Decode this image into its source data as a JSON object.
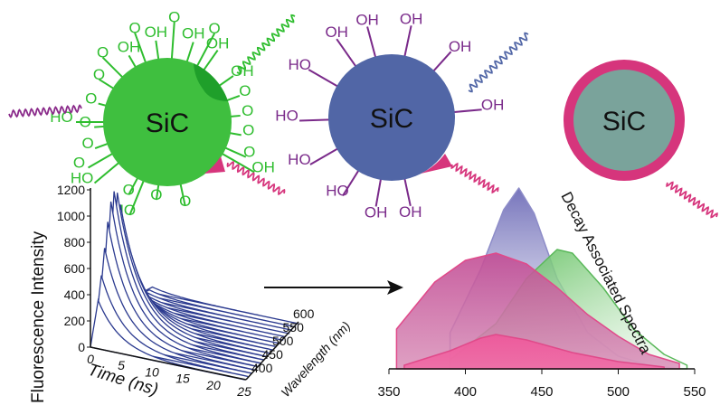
{
  "particles": [
    {
      "label": "SiC",
      "group_labels": [
        "OH",
        "OH",
        "OH",
        "OH",
        "O",
        "O",
        "O",
        "O",
        "O",
        "O",
        "O",
        "O",
        "O",
        "O",
        "O",
        "O",
        "O",
        "O",
        "O",
        "O",
        "OH",
        "HO",
        "HO",
        "HO",
        "OH"
      ]
    },
    {
      "label": "SiC",
      "group_labels": [
        "OH",
        "OH",
        "OH",
        "OH",
        "OH",
        "OH",
        "HO",
        "HO",
        "HO",
        "HO",
        "OH"
      ]
    },
    {
      "label": "SiC"
    }
  ],
  "colors": {
    "green_particle": "#3fbf3f",
    "green_dark": "#1f9f2a",
    "blue_particle": "#5166a6",
    "teal_core": "#7aa39b",
    "magenta_shell": "#d6357c",
    "purple_wave": "#8a2a8a",
    "decay_blue": "#2b3a8f"
  },
  "chart_3d": {
    "ylabel": "Fluorescence Intensity",
    "yticks": [
      "0",
      "200",
      "400",
      "600",
      "800",
      "1000",
      "1200"
    ],
    "xlabel": "Time (ns)",
    "xticks": [
      "0",
      "5",
      "10",
      "15",
      "20",
      "25"
    ],
    "zlabel": "Wavelength (nm)",
    "zticks": [
      "400",
      "450",
      "500",
      "550",
      "600"
    ]
  },
  "chart_data": {
    "type": "area",
    "title": "Decay Associated Spectra",
    "xlabel": "",
    "xticks": [
      "350",
      "400",
      "450",
      "500",
      "550"
    ],
    "xlim": [
      350,
      550
    ],
    "series": [
      {
        "x": [
          390,
          410,
          425,
          435,
          445,
          460,
          480,
          500,
          520,
          540
        ],
        "values": [
          0.2,
          0.55,
          0.88,
          1.0,
          0.86,
          0.5,
          0.2,
          0.07,
          0.02,
          0.0
        ],
        "color": "#8d8cc8"
      },
      {
        "x": [
          390,
          420,
          440,
          460,
          470,
          490,
          510,
          530,
          545
        ],
        "values": [
          0.05,
          0.25,
          0.5,
          0.66,
          0.64,
          0.45,
          0.22,
          0.08,
          0.02
        ],
        "color": "#7cc47a"
      },
      {
        "x": [
          355,
          380,
          400,
          420,
          440,
          460,
          480,
          500,
          520,
          540
        ],
        "values": [
          0.22,
          0.48,
          0.6,
          0.64,
          0.58,
          0.45,
          0.3,
          0.18,
          0.08,
          0.03
        ],
        "color": "#c85a9a"
      },
      {
        "x": [
          360,
          390,
          410,
          420,
          440,
          470,
          500,
          530
        ],
        "values": [
          0.02,
          0.1,
          0.17,
          0.19,
          0.16,
          0.09,
          0.04,
          0.01
        ],
        "color": "#e04a8a"
      }
    ]
  }
}
